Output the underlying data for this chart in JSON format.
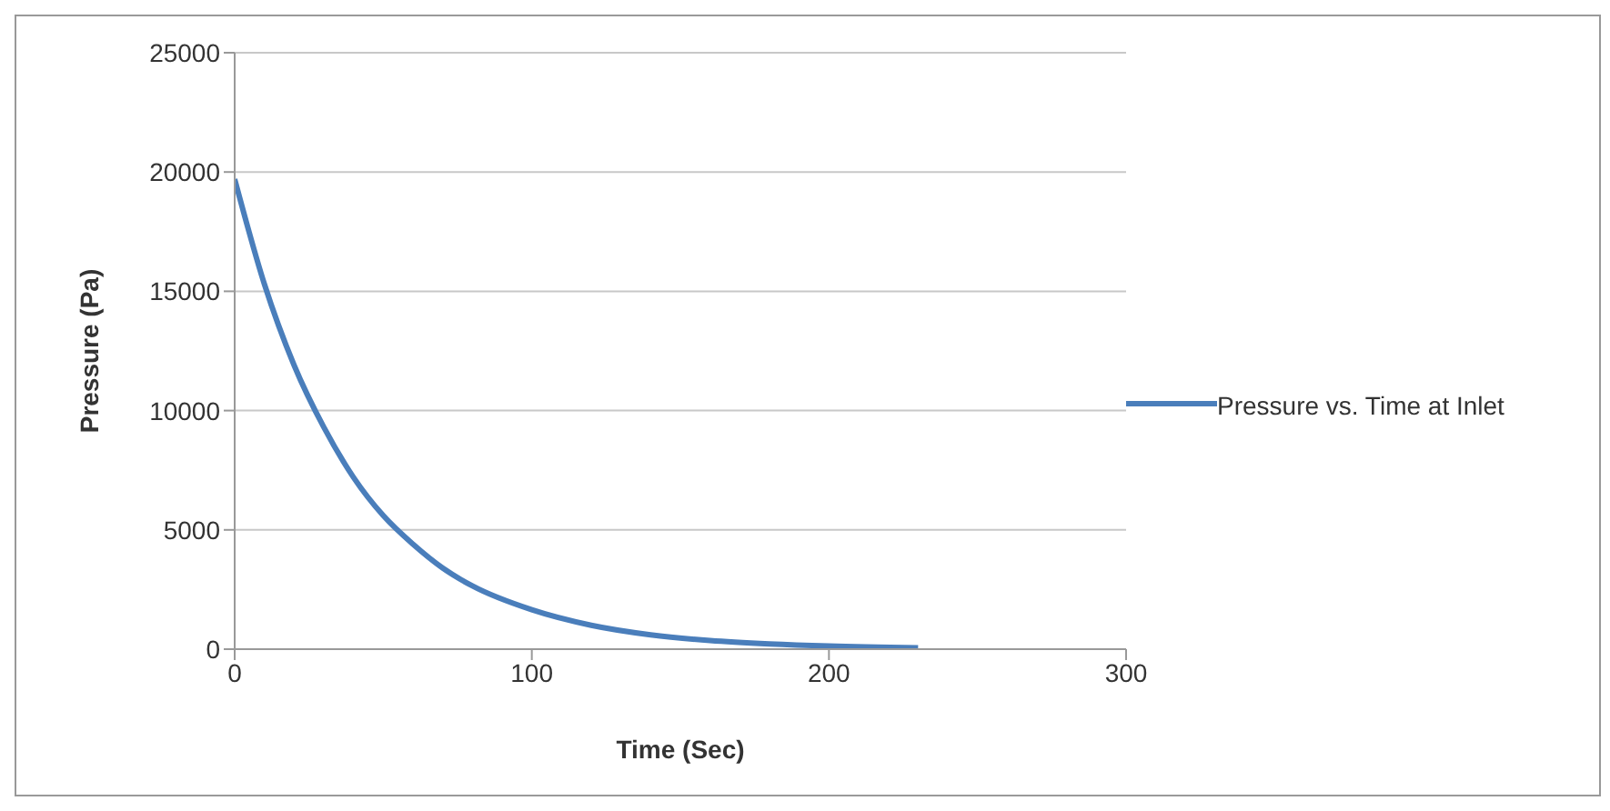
{
  "chart_data": {
    "type": "line",
    "xlabel": "Time (Sec)",
    "ylabel": "Pressure (Pa)",
    "xlim": [
      0,
      300
    ],
    "xticks": [
      0,
      100,
      200,
      300
    ],
    "ylim": [
      0,
      25000
    ],
    "yticks": [
      0,
      5000,
      10000,
      15000,
      20000,
      25000
    ],
    "grid": "y",
    "legend": "right",
    "marker": "none",
    "line_style": "solid",
    "series": [
      {
        "name": "Pressure vs. Time at Inlet",
        "color": "#4a7ebb",
        "x": [
          0,
          10,
          20,
          30,
          40,
          50,
          60,
          70,
          80,
          100,
          120,
          140,
          160,
          180,
          200,
          230
        ],
        "values": [
          19700,
          15300,
          11900,
          9300,
          7200,
          5600,
          4400,
          3400,
          2650,
          1650,
          1000,
          600,
          360,
          220,
          130,
          60
        ]
      }
    ]
  }
}
